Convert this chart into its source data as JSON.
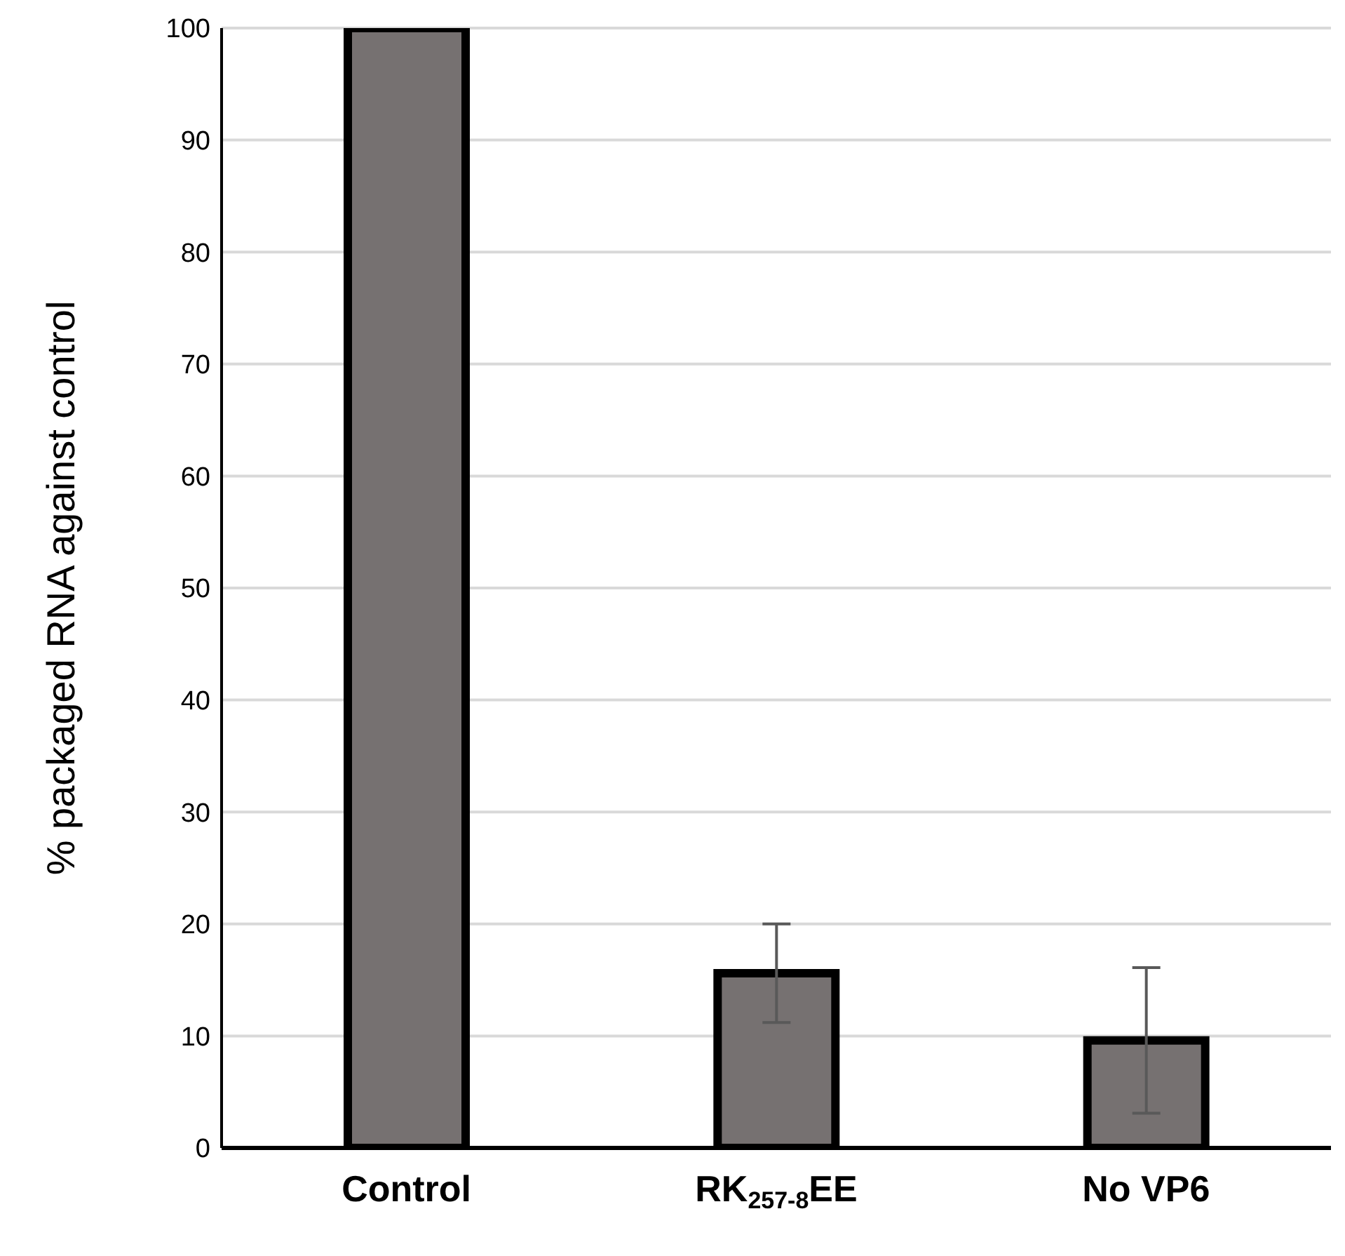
{
  "chart_data": {
    "type": "bar",
    "ylabel": "% packaged RNA against  control",
    "categories": [
      "Control",
      "RK$_{257-8}$EE",
      "No VP6"
    ],
    "values": [
      100,
      15.6,
      9.6
    ],
    "errors": [
      null,
      4.4,
      6.5
    ],
    "color": "#767171",
    "ylim": [
      0,
      100
    ],
    "yticks": [
      0,
      10,
      20,
      30,
      40,
      50,
      60,
      70,
      80,
      90,
      100
    ],
    "grid": "y"
  }
}
